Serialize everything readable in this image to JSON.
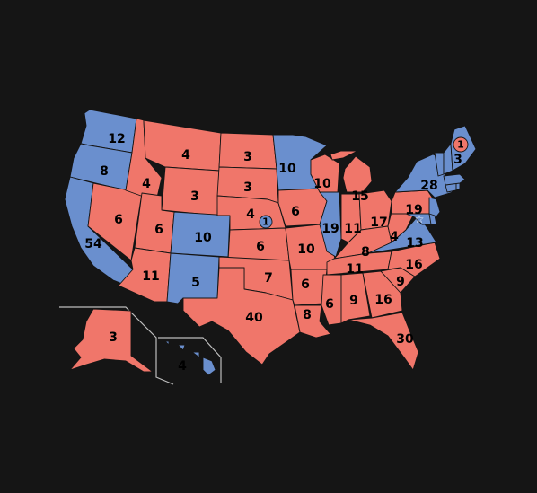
{
  "colors": {
    "background": "#151515",
    "republican": "#f0766a",
    "democratic": "#6a8fce",
    "inset_border": "#bdbdbd",
    "label_text": "#000000"
  },
  "states": [
    {
      "code": "WA",
      "party": "democratic",
      "votes": "12"
    },
    {
      "code": "OR",
      "party": "democratic",
      "votes": "8"
    },
    {
      "code": "CA",
      "party": "democratic",
      "votes": "54"
    },
    {
      "code": "ID",
      "party": "republican",
      "votes": "4"
    },
    {
      "code": "NV",
      "party": "republican",
      "votes": "6"
    },
    {
      "code": "MT",
      "party": "republican",
      "votes": "4"
    },
    {
      "code": "WY",
      "party": "republican",
      "votes": "3"
    },
    {
      "code": "UT",
      "party": "republican",
      "votes": "6"
    },
    {
      "code": "AZ",
      "party": "republican",
      "votes": "11"
    },
    {
      "code": "CO",
      "party": "democratic",
      "votes": "10"
    },
    {
      "code": "NM",
      "party": "democratic",
      "votes": "5"
    },
    {
      "code": "ND",
      "party": "republican",
      "votes": "3"
    },
    {
      "code": "SD",
      "party": "republican",
      "votes": "3"
    },
    {
      "code": "NE",
      "party": "republican",
      "votes": "4"
    },
    {
      "code": "NE-2",
      "party": "democratic",
      "votes": "1"
    },
    {
      "code": "KS",
      "party": "republican",
      "votes": "6"
    },
    {
      "code": "OK",
      "party": "republican",
      "votes": "7"
    },
    {
      "code": "TX",
      "party": "republican",
      "votes": "40"
    },
    {
      "code": "MN",
      "party": "democratic",
      "votes": "10"
    },
    {
      "code": "IA",
      "party": "republican",
      "votes": "6"
    },
    {
      "code": "MO",
      "party": "republican",
      "votes": "10"
    },
    {
      "code": "AR",
      "party": "republican",
      "votes": "6"
    },
    {
      "code": "LA",
      "party": "republican",
      "votes": "8"
    },
    {
      "code": "WI",
      "party": "republican",
      "votes": "10"
    },
    {
      "code": "IL",
      "party": "democratic",
      "votes": "19"
    },
    {
      "code": "MI",
      "party": "republican",
      "votes": "15"
    },
    {
      "code": "IN",
      "party": "republican",
      "votes": "11"
    },
    {
      "code": "OH",
      "party": "republican",
      "votes": "17"
    },
    {
      "code": "KY",
      "party": "republican",
      "votes": "8"
    },
    {
      "code": "TN",
      "party": "republican",
      "votes": "11"
    },
    {
      "code": "MS",
      "party": "republican",
      "votes": "6"
    },
    {
      "code": "AL",
      "party": "republican",
      "votes": "9"
    },
    {
      "code": "GA",
      "party": "republican",
      "votes": "16"
    },
    {
      "code": "FL",
      "party": "republican",
      "votes": "30"
    },
    {
      "code": "SC",
      "party": "republican",
      "votes": "9"
    },
    {
      "code": "NC",
      "party": "republican",
      "votes": "16"
    },
    {
      "code": "VA",
      "party": "democratic",
      "votes": "13"
    },
    {
      "code": "WV",
      "party": "republican",
      "votes": "4"
    },
    {
      "code": "PA",
      "party": "republican",
      "votes": "19"
    },
    {
      "code": "NY",
      "party": "democratic",
      "votes": "28"
    },
    {
      "code": "MD",
      "party": "democratic",
      "votes": ""
    },
    {
      "code": "NJ",
      "party": "democratic",
      "votes": ""
    },
    {
      "code": "DE",
      "party": "democratic",
      "votes": ""
    },
    {
      "code": "CT",
      "party": "democratic",
      "votes": ""
    },
    {
      "code": "RI",
      "party": "democratic",
      "votes": ""
    },
    {
      "code": "MA",
      "party": "democratic",
      "votes": ""
    },
    {
      "code": "VT",
      "party": "democratic",
      "votes": ""
    },
    {
      "code": "NH",
      "party": "democratic",
      "votes": ""
    },
    {
      "code": "ME",
      "party": "democratic",
      "votes": "3"
    },
    {
      "code": "ME-2",
      "party": "republican",
      "votes": "1"
    },
    {
      "code": "AK",
      "party": "republican",
      "votes": "3"
    },
    {
      "code": "HI",
      "party": "democratic",
      "votes": "4"
    }
  ]
}
